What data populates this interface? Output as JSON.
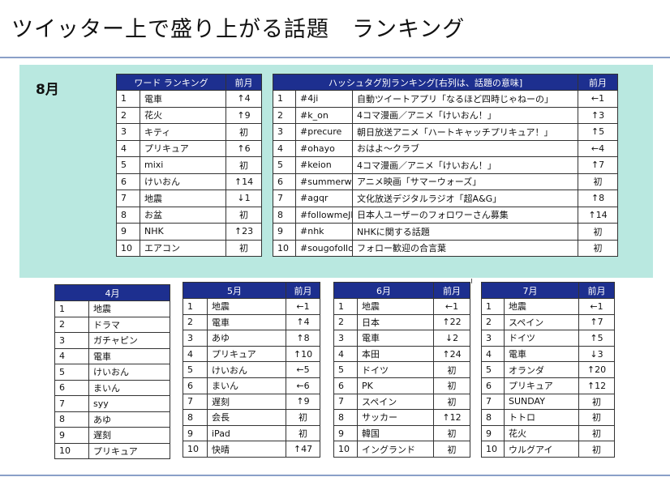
{
  "title": "ツイッター上で盛り上がる話題　ランキング",
  "august": {
    "label": "8月",
    "word": {
      "header": "ワード ランキング",
      "prev": "前月",
      "rows": [
        [
          "1",
          "電車",
          "↑4"
        ],
        [
          "2",
          "花火",
          "↑9"
        ],
        [
          "3",
          "キティ",
          "初"
        ],
        [
          "4",
          "プリキュア",
          "↑6"
        ],
        [
          "5",
          "mixi",
          "初"
        ],
        [
          "6",
          "けいおん",
          "↑14"
        ],
        [
          "7",
          "地震",
          "↓1"
        ],
        [
          "8",
          "お盆",
          "初"
        ],
        [
          "9",
          "NHK",
          "↑23"
        ],
        [
          "10",
          "エアコン",
          "初"
        ]
      ]
    },
    "hashtag": {
      "header": "ハッシュタグ別ランキング[右列は、話題の意味]",
      "prev": "前月",
      "rows": [
        [
          "1",
          "#4ji",
          "自動ツイートアプリ「なるほど四時じゃねーの」",
          "←1"
        ],
        [
          "2",
          "#k_on",
          "4コマ漫画／アニメ「けいおん！」",
          "↑3"
        ],
        [
          "3",
          "#precure",
          "朝日放送アニメ「ハートキャッチプリキュア！」",
          "↑5"
        ],
        [
          "4",
          "#ohayo",
          "おはよ～クラブ",
          "←4"
        ],
        [
          "5",
          "#keion",
          "4コマ漫画／アニメ「けいおん！」",
          "↑7"
        ],
        [
          "6",
          "#summerwars",
          "アニメ映画「サマーウォーズ」",
          "初"
        ],
        [
          "7",
          "#agqr",
          "文化放送デジタルラジオ「超A&G」",
          "↑8"
        ],
        [
          "8",
          "#followmeJP",
          "日本人ユーザーのフォロワーさん募集",
          "↑14"
        ],
        [
          "9",
          "#nhk",
          "NHKに関する話題",
          "初"
        ],
        [
          "10",
          "#sougofollow",
          "フォロー歓迎の合言葉",
          "初"
        ]
      ]
    }
  },
  "april": {
    "header": "4月",
    "rows": [
      [
        "1",
        "地震"
      ],
      [
        "2",
        "ドラマ"
      ],
      [
        "3",
        "ガチャピン"
      ],
      [
        "4",
        "電車"
      ],
      [
        "5",
        "けいおん"
      ],
      [
        "6",
        "まいん"
      ],
      [
        "7",
        "syy"
      ],
      [
        "8",
        "あゆ"
      ],
      [
        "9",
        "遅刻"
      ],
      [
        "10",
        "プリキュア"
      ]
    ]
  },
  "may": {
    "header": "5月",
    "prev": "前月",
    "rows": [
      [
        "1",
        "地震",
        "←1"
      ],
      [
        "2",
        "電車",
        "↑4"
      ],
      [
        "3",
        "あゆ",
        "↑8"
      ],
      [
        "4",
        "プリキュア",
        "↑10"
      ],
      [
        "5",
        "けいおん",
        "←5"
      ],
      [
        "6",
        "まいん",
        "←6"
      ],
      [
        "7",
        "遅刻",
        "↑9"
      ],
      [
        "8",
        "会長",
        "初"
      ],
      [
        "9",
        "iPad",
        "初"
      ],
      [
        "10",
        "快晴",
        "↑47"
      ]
    ]
  },
  "june": {
    "header": "6月",
    "prev": "前月",
    "rows": [
      [
        "1",
        "地震",
        "←1"
      ],
      [
        "2",
        "日本",
        "↑22"
      ],
      [
        "3",
        "電車",
        "↓2"
      ],
      [
        "4",
        "本田",
        "↑24"
      ],
      [
        "5",
        "ドイツ",
        "初"
      ],
      [
        "6",
        "PK",
        "初"
      ],
      [
        "7",
        "スペイン",
        "初"
      ],
      [
        "8",
        "サッカー",
        "↑12"
      ],
      [
        "9",
        "韓国",
        "初"
      ],
      [
        "10",
        "イングランド",
        "初"
      ]
    ]
  },
  "july": {
    "header": "7月",
    "prev": "前月",
    "rows": [
      [
        "1",
        "地震",
        "←1"
      ],
      [
        "2",
        "スペイン",
        "↑7"
      ],
      [
        "3",
        "ドイツ",
        "↑5"
      ],
      [
        "4",
        "電車",
        "↓3"
      ],
      [
        "5",
        "オランダ",
        "↑20"
      ],
      [
        "6",
        "プリキュア",
        "↑12"
      ],
      [
        "7",
        "SUNDAY",
        "初"
      ],
      [
        "8",
        "トトロ",
        "初"
      ],
      [
        "9",
        "花火",
        "初"
      ],
      [
        "10",
        "ウルグアイ",
        "初"
      ]
    ]
  }
}
